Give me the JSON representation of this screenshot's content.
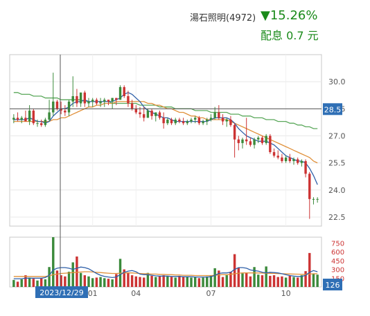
{
  "header": {
    "stock_title": "湯石照明(4972)",
    "change_pct": "▼15.26%",
    "dividend_label": "配息 0.7 元"
  },
  "colors": {
    "up": "#3b8a3b",
    "down": "#cc3333",
    "ma_short": "#2e5fa8",
    "ma_mid": "#e0903a",
    "ma_long": "#5aa85a",
    "price_tag": "#2f6fb5",
    "vol_axis_text": "#cc3333"
  },
  "chart_data": [
    {
      "type": "candlestick",
      "ylim": [
        22,
        31.5
      ],
      "y_ticks": [
        "30.0",
        "28.5",
        "27.0",
        "25.5",
        "24.0",
        "22.5"
      ],
      "x_ticks": [
        "01",
        "04",
        "07",
        "10"
      ],
      "crosshair_date": "2023/12/29",
      "crosshair_price": "28.5",
      "ohlc": [
        [
          27.9,
          28.2,
          27.7,
          28.0
        ],
        [
          28.0,
          28.3,
          27.8,
          27.9
        ],
        [
          27.9,
          28.1,
          27.7,
          28.0
        ],
        [
          28.0,
          28.4,
          27.8,
          27.8
        ],
        [
          27.8,
          28.7,
          27.6,
          28.4
        ],
        [
          28.4,
          28.5,
          27.6,
          27.7
        ],
        [
          27.7,
          27.9,
          27.5,
          27.7
        ],
        [
          27.7,
          27.9,
          27.5,
          27.6
        ],
        [
          27.6,
          28.0,
          27.5,
          27.9
        ],
        [
          27.9,
          29.0,
          27.8,
          28.3
        ],
        [
          28.3,
          30.5,
          28.1,
          28.9
        ],
        [
          28.9,
          29.0,
          28.4,
          28.5
        ],
        [
          28.5,
          28.9,
          28.2,
          28.4
        ],
        [
          28.4,
          28.7,
          28.1,
          28.3
        ],
        [
          28.3,
          29.0,
          28.1,
          28.9
        ],
        [
          28.9,
          30.3,
          28.6,
          29.2
        ],
        [
          29.2,
          29.6,
          28.6,
          28.8
        ],
        [
          28.8,
          29.4,
          28.6,
          29.4
        ],
        [
          29.4,
          29.5,
          28.6,
          28.8
        ],
        [
          28.8,
          29.1,
          28.6,
          28.9
        ],
        [
          28.9,
          29.1,
          28.6,
          29.0
        ],
        [
          29.0,
          29.1,
          28.7,
          28.8
        ],
        [
          28.8,
          29.1,
          28.6,
          28.9
        ],
        [
          28.9,
          29.1,
          28.6,
          29.0
        ],
        [
          29.0,
          29.0,
          28.7,
          28.9
        ],
        [
          28.9,
          29.1,
          28.5,
          29.1
        ],
        [
          29.1,
          29.1,
          28.7,
          29.0
        ],
        [
          29.0,
          29.8,
          29.0,
          29.7
        ],
        [
          29.7,
          29.8,
          29.1,
          29.2
        ],
        [
          29.2,
          29.5,
          28.6,
          28.8
        ],
        [
          28.8,
          29.0,
          28.4,
          28.5
        ],
        [
          28.5,
          28.7,
          28.2,
          28.3
        ],
        [
          28.3,
          28.6,
          28.0,
          28.2
        ],
        [
          28.2,
          28.6,
          27.8,
          28.0
        ],
        [
          28.0,
          28.5,
          28.0,
          28.4
        ],
        [
          28.4,
          28.5,
          27.9,
          28.1
        ],
        [
          28.1,
          28.3,
          27.8,
          28.3
        ],
        [
          28.3,
          28.4,
          27.9,
          28.0
        ],
        [
          28.0,
          28.3,
          27.4,
          27.7
        ],
        [
          27.7,
          28.0,
          27.6,
          27.9
        ],
        [
          27.9,
          28.0,
          27.6,
          27.7
        ],
        [
          27.7,
          28.0,
          27.6,
          27.9
        ],
        [
          27.9,
          28.0,
          27.7,
          27.8
        ],
        [
          27.8,
          28.0,
          27.6,
          27.7
        ],
        [
          27.7,
          27.9,
          27.6,
          27.8
        ],
        [
          27.8,
          28.0,
          27.7,
          27.9
        ],
        [
          27.9,
          28.1,
          27.7,
          28.0
        ],
        [
          28.0,
          28.1,
          27.6,
          27.7
        ],
        [
          27.7,
          27.9,
          27.6,
          27.8
        ],
        [
          27.8,
          28.0,
          27.6,
          27.9
        ],
        [
          27.9,
          28.2,
          27.8,
          28.0
        ],
        [
          28.0,
          28.6,
          27.9,
          28.3
        ],
        [
          28.3,
          28.7,
          27.9,
          28.0
        ],
        [
          28.0,
          28.2,
          27.6,
          27.8
        ],
        [
          27.8,
          28.0,
          27.5,
          27.9
        ],
        [
          27.9,
          28.1,
          27.5,
          27.6
        ],
        [
          27.6,
          27.7,
          25.8,
          26.8
        ],
        [
          26.8,
          27.0,
          26.2,
          26.6
        ],
        [
          26.6,
          26.9,
          26.3,
          26.8
        ],
        [
          26.8,
          28.0,
          26.5,
          26.7
        ],
        [
          26.7,
          26.9,
          26.4,
          26.5
        ],
        [
          26.5,
          26.9,
          26.3,
          26.8
        ],
        [
          26.8,
          27.0,
          26.6,
          26.9
        ],
        [
          26.9,
          27.0,
          26.5,
          26.6
        ],
        [
          26.6,
          27.1,
          26.5,
          27.0
        ],
        [
          27.0,
          27.1,
          26.0,
          26.1
        ],
        [
          26.1,
          26.3,
          25.8,
          25.9
        ],
        [
          25.9,
          26.2,
          25.7,
          25.8
        ],
        [
          25.8,
          26.0,
          25.5,
          25.6
        ],
        [
          25.6,
          25.9,
          25.5,
          25.8
        ],
        [
          25.8,
          26.0,
          25.5,
          25.6
        ],
        [
          25.6,
          25.8,
          25.4,
          25.7
        ],
        [
          25.7,
          25.8,
          25.4,
          25.5
        ],
        [
          25.5,
          25.7,
          25.3,
          25.6
        ],
        [
          25.6,
          25.7,
          24.7,
          24.9
        ],
        [
          24.9,
          25.0,
          22.4,
          23.5
        ],
        [
          23.5,
          23.6,
          23.2,
          23.5
        ],
        [
          23.5,
          23.6,
          23.3,
          23.5
        ]
      ],
      "ma_short": [
        27.9,
        27.9,
        27.9,
        27.9,
        28.0,
        27.9,
        27.8,
        27.8,
        27.7,
        27.8,
        28.1,
        28.3,
        28.5,
        28.5,
        28.6,
        28.8,
        28.9,
        28.9,
        29.0,
        28.9,
        28.9,
        28.9,
        28.9,
        28.9,
        28.9,
        28.9,
        29.0,
        29.1,
        29.3,
        29.4,
        29.3,
        29.1,
        28.9,
        28.6,
        28.4,
        28.3,
        28.2,
        28.1,
        28.0,
        28.0,
        27.9,
        27.8,
        27.8,
        27.8,
        27.8,
        27.8,
        27.8,
        27.8,
        27.8,
        27.8,
        27.9,
        28.0,
        28.0,
        28.0,
        28.0,
        27.9,
        27.7,
        27.4,
        27.2,
        27.0,
        26.9,
        26.8,
        26.7,
        26.7,
        26.7,
        26.6,
        26.5,
        26.3,
        26.1,
        25.9,
        25.8,
        25.7,
        25.6,
        25.6,
        25.5,
        25.2,
        24.8,
        24.3
      ],
      "ma_mid": [
        27.8,
        27.8,
        27.8,
        27.8,
        27.8,
        27.8,
        27.8,
        27.8,
        27.8,
        27.8,
        27.9,
        27.9,
        28.0,
        28.0,
        28.1,
        28.2,
        28.3,
        28.4,
        28.5,
        28.6,
        28.6,
        28.7,
        28.7,
        28.8,
        28.8,
        28.8,
        28.9,
        28.9,
        28.9,
        28.9,
        28.9,
        28.9,
        28.9,
        28.9,
        28.8,
        28.8,
        28.7,
        28.7,
        28.6,
        28.5,
        28.5,
        28.4,
        28.3,
        28.3,
        28.2,
        28.1,
        28.1,
        28.0,
        28.0,
        27.9,
        27.9,
        27.9,
        27.9,
        27.9,
        27.9,
        27.8,
        27.7,
        27.6,
        27.5,
        27.4,
        27.3,
        27.2,
        27.1,
        27.0,
        26.9,
        26.8,
        26.7,
        26.6,
        26.5,
        26.4,
        26.3,
        26.2,
        26.1,
        26.0,
        25.9,
        25.8,
        25.6,
        25.5
      ],
      "ma_long": [
        29.4,
        29.4,
        29.3,
        29.3,
        29.3,
        29.2,
        29.2,
        29.2,
        29.1,
        29.1,
        29.1,
        29.1,
        29.0,
        29.0,
        29.0,
        29.0,
        29.0,
        29.0,
        28.9,
        28.9,
        28.9,
        28.9,
        28.9,
        28.9,
        28.9,
        28.8,
        28.8,
        28.8,
        28.8,
        28.8,
        28.8,
        28.8,
        28.7,
        28.7,
        28.7,
        28.7,
        28.7,
        28.6,
        28.6,
        28.6,
        28.6,
        28.5,
        28.5,
        28.5,
        28.5,
        28.5,
        28.4,
        28.4,
        28.4,
        28.4,
        28.3,
        28.3,
        28.3,
        28.3,
        28.3,
        28.2,
        28.2,
        28.2,
        28.1,
        28.1,
        28.1,
        28.0,
        28.0,
        28.0,
        27.9,
        27.9,
        27.9,
        27.8,
        27.8,
        27.8,
        27.7,
        27.7,
        27.6,
        27.6,
        27.5,
        27.5,
        27.4,
        27.4
      ]
    },
    {
      "type": "bar",
      "ylim": [
        0,
        850
      ],
      "y_ticks": [
        "750",
        "600",
        "450",
        "300",
        "150"
      ],
      "current_volume": "126",
      "volumes": [
        120,
        90,
        130,
        200,
        160,
        140,
        110,
        150,
        130,
        340,
        850,
        280,
        200,
        180,
        260,
        420,
        520,
        240,
        200,
        180,
        150,
        160,
        170,
        150,
        140,
        130,
        220,
        480,
        300,
        250,
        200,
        180,
        170,
        160,
        240,
        190,
        170,
        180,
        200,
        180,
        170,
        160,
        190,
        170,
        180,
        160,
        170,
        150,
        160,
        180,
        200,
        320,
        280,
        170,
        200,
        260,
        560,
        330,
        230,
        240,
        180,
        340,
        210,
        200,
        350,
        190,
        200,
        170,
        180,
        160,
        190,
        170,
        160,
        200,
        270,
        580,
        220,
        210
      ],
      "vol_ma_short": [
        140,
        140,
        140,
        150,
        150,
        150,
        150,
        150,
        160,
        200,
        290,
        320,
        330,
        330,
        320,
        300,
        320,
        340,
        330,
        310,
        270,
        230,
        200,
        180,
        170,
        160,
        170,
        210,
        250,
        270,
        280,
        260,
        220,
        210,
        210,
        200,
        190,
        185,
        185,
        185,
        180,
        180,
        180,
        175,
        175,
        175,
        170,
        170,
        170,
        170,
        175,
        200,
        230,
        240,
        240,
        250,
        300,
        330,
        330,
        320,
        290,
        280,
        270,
        250,
        240,
        250,
        245,
        240,
        225,
        210,
        195,
        185,
        180,
        180,
        200,
        250,
        280,
        260
      ],
      "vol_ma_mid": [
        180,
        180,
        180,
        180,
        180,
        180,
        180,
        180,
        180,
        190,
        210,
        220,
        230,
        235,
        240,
        245,
        250,
        255,
        260,
        260,
        255,
        250,
        245,
        240,
        235,
        230,
        230,
        235,
        240,
        240,
        240,
        235,
        230,
        225,
        225,
        220,
        220,
        215,
        215,
        210,
        210,
        205,
        205,
        200,
        200,
        200,
        195,
        195,
        195,
        195,
        195,
        200,
        205,
        210,
        210,
        215,
        225,
        235,
        240,
        240,
        240,
        240,
        238,
        236,
        234,
        232,
        230,
        228,
        226,
        224,
        222,
        220,
        218,
        216,
        216,
        220,
        225,
        225
      ]
    }
  ]
}
